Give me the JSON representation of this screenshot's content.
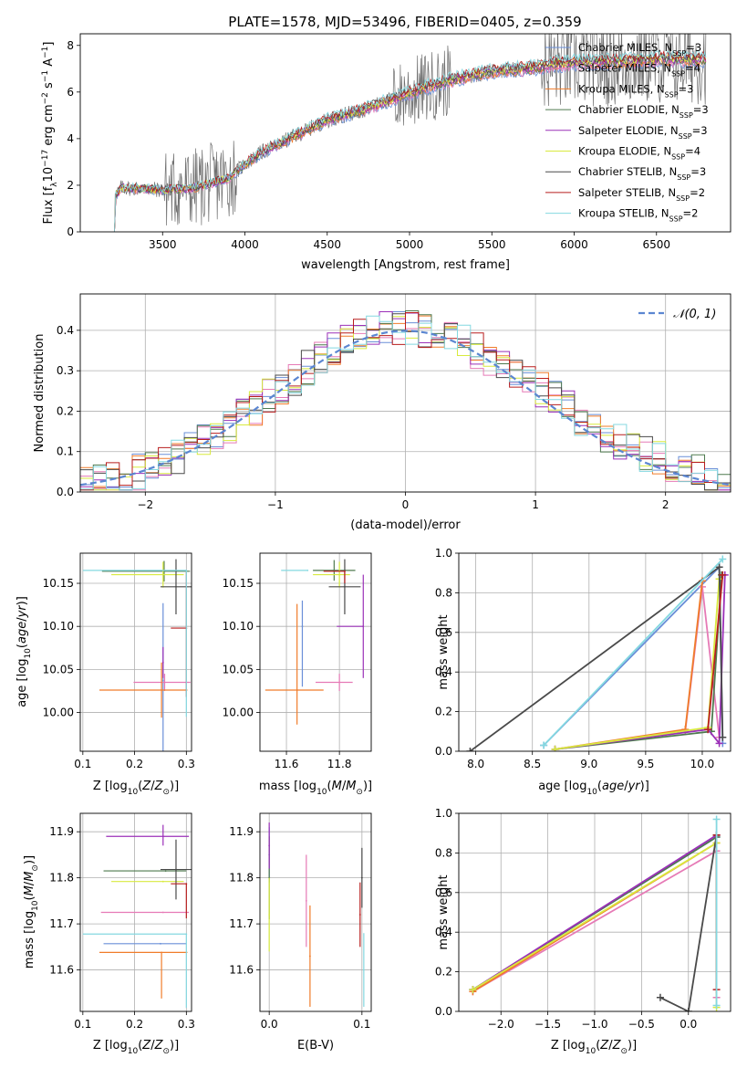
{
  "figure_title": "PLATE=1578, MJD=53496, FIBERID=0405, z=0.359",
  "colors": {
    "Chabrier MILES": "#6a8fd8",
    "Salpeter MILES": "#e67ab6",
    "Kroupa MILES": "#f07c2a",
    "Chabrier ELODIE": "#4f7a4f",
    "Salpeter ELODIE": "#9b30b8",
    "Kroupa ELODIE": "#d8ea3e",
    "Chabrier STELIB": "#4a4a4a",
    "Salpeter STELIB": "#b81e1e",
    "Kroupa STELIB": "#84d8e0",
    "gaussian": "#5b86d1",
    "data": "#6f6f6f"
  },
  "chart_data": [
    {
      "id": "spectrum",
      "type": "line",
      "title": "PLATE=1578, MJD=53496, FIBERID=0405, z=0.359",
      "xlabel": "wavelength [Angstrom, rest frame]",
      "ylabel": "Flux [f_λ 10^-17 erg cm^-2 s^-1 A^-1]",
      "xlim": [
        3000,
        6950
      ],
      "ylim": [
        0,
        8.5
      ],
      "xticks": [
        3500,
        4000,
        4500,
        5000,
        5500,
        6000,
        6500
      ],
      "yticks": [
        0,
        2,
        4,
        6,
        8
      ],
      "grid": false,
      "legend_position": "top-right",
      "continuum_knots": [
        [
          3200,
          1.4
        ],
        [
          3250,
          1.9
        ],
        [
          3500,
          1.8
        ],
        [
          3700,
          1.9
        ],
        [
          3900,
          2.3
        ],
        [
          4000,
          2.9
        ],
        [
          4100,
          3.4
        ],
        [
          4300,
          4.1
        ],
        [
          4500,
          4.8
        ],
        [
          4700,
          5.2
        ],
        [
          4900,
          5.7
        ],
        [
          5100,
          6.2
        ],
        [
          5300,
          6.6
        ],
        [
          5500,
          6.9
        ],
        [
          5700,
          7.0
        ],
        [
          5900,
          7.2
        ],
        [
          6100,
          7.3
        ],
        [
          6300,
          7.3
        ],
        [
          6500,
          7.4
        ],
        [
          6800,
          7.4
        ]
      ],
      "series": [
        {
          "name": "Chabrier MILES",
          "nssp": "3"
        },
        {
          "name": "Salpeter MILES",
          "nssp": "4"
        },
        {
          "name": "Kroupa MILES",
          "nssp": "3"
        },
        {
          "name": "Chabrier ELODIE",
          "nssp": "3"
        },
        {
          "name": "Salpeter ELODIE",
          "nssp": "3"
        },
        {
          "name": "Kroupa ELODIE",
          "nssp": "4"
        },
        {
          "name": "Chabrier STELIB",
          "nssp": "3"
        },
        {
          "name": "Salpeter STELIB",
          "nssp": "2"
        },
        {
          "name": "Kroupa STELIB",
          "nssp": "2"
        }
      ]
    },
    {
      "id": "residuals",
      "type": "line",
      "xlabel": "(data-model)/error",
      "ylabel": "Normed distribution",
      "xlim": [
        -2.5,
        2.5
      ],
      "ylim": [
        0,
        0.49
      ],
      "xticks": [
        -2,
        -1,
        0,
        1,
        2
      ],
      "yticks": [
        0.0,
        0.1,
        0.2,
        0.3,
        0.4
      ],
      "grid": true,
      "legend_position": "top-right",
      "legend_entry": "𝒩(0, 1)",
      "bin_edges": [
        -2.5,
        -2.4,
        -2.3,
        -2.2,
        -2.1,
        -2.0,
        -1.9,
        -1.8,
        -1.7,
        -1.6,
        -1.5,
        -1.4,
        -1.3,
        -1.2,
        -1.1,
        -1.0,
        -0.9,
        -0.8,
        -0.7,
        -0.6,
        -0.5,
        -0.4,
        -0.3,
        -0.2,
        -0.1,
        0.0,
        0.1,
        0.2,
        0.3,
        0.4,
        0.5,
        0.6,
        0.7,
        0.8,
        0.9,
        1.0,
        1.1,
        1.2,
        1.3,
        1.4,
        1.5,
        1.6,
        1.7,
        1.8,
        1.9,
        2.0,
        2.1,
        2.2,
        2.3,
        2.4,
        2.5
      ]
    },
    {
      "id": "age-vs-z",
      "type": "scatter",
      "xlabel": "Z [log10(Z/Z⊙)]",
      "ylabel": "age  [log10(age/yr)]",
      "xlim": [
        0.095,
        0.31
      ],
      "ylim": [
        9.955,
        10.185
      ],
      "xticks": [
        0.1,
        0.2,
        0.3
      ],
      "yticks": [
        10.0,
        10.05,
        10.1,
        10.15
      ],
      "grid": true,
      "errorbars": [
        {
          "series": "Chabrier MILES",
          "x": 0.255,
          "y": 10.037,
          "xerr": [
            0.0,
            0.0
          ],
          "yerr": [
            0.09,
            0.09
          ]
        },
        {
          "series": "Salpeter MILES",
          "x": 0.258,
          "y": 10.035,
          "xerr": [
            0.06,
            0.05
          ],
          "yerr": [
            0.01,
            0.01
          ]
        },
        {
          "series": "Kroupa MILES",
          "x": 0.252,
          "y": 10.026,
          "xerr": [
            0.12,
            0.05
          ],
          "yerr": [
            0.032,
            0.032
          ]
        },
        {
          "series": "Chabrier ELODIE",
          "x": 0.257,
          "y": 10.164,
          "xerr": [
            0.12,
            0.05
          ],
          "yerr": [
            0.012,
            0.012
          ]
        },
        {
          "series": "Salpeter ELODIE",
          "x": 0.255,
          "y": 10.058,
          "xerr": [
            0.0,
            0.0
          ],
          "yerr": [
            0.018,
            0.018
          ]
        },
        {
          "series": "Kroupa ELODIE",
          "x": 0.255,
          "y": 10.16,
          "xerr": [
            0.1,
            0.04
          ],
          "yerr": [
            0.015,
            0.015
          ]
        },
        {
          "series": "Chabrier STELIB",
          "x": 0.28,
          "y": 10.146,
          "xerr": [
            0.03,
            0.03
          ],
          "yerr": [
            0.032,
            0.032
          ]
        },
        {
          "series": "Salpeter STELIB",
          "x": 0.3,
          "y": 10.098,
          "xerr": [
            0.03,
            0.0
          ],
          "yerr": [
            0.08,
            0.065
          ]
        },
        {
          "series": "Kroupa STELIB",
          "x": 0.3,
          "y": 10.165,
          "xerr": [
            0.2,
            0.0
          ],
          "yerr": [
            0.17,
            0.0
          ]
        }
      ]
    },
    {
      "id": "age-vs-mass",
      "type": "scatter",
      "xlabel": "mass [log10(M/M⊙)]",
      "ylabel": "",
      "xlim": [
        11.5,
        11.92
      ],
      "ylim": [
        9.955,
        10.185
      ],
      "xticks": [
        11.6,
        11.8
      ],
      "yticks": [
        10.0,
        10.05,
        10.1,
        10.15
      ],
      "grid": true,
      "errorbars": [
        {
          "series": "Chabrier MILES",
          "x": 11.66,
          "y": 10.1,
          "xerr": [
            0.0,
            0.0
          ],
          "yerr": [
            0.07,
            0.03
          ]
        },
        {
          "series": "Salpeter MILES",
          "x": 11.8,
          "y": 10.035,
          "xerr": [
            0.09,
            0.05
          ],
          "yerr": [
            0.01,
            0.01
          ]
        },
        {
          "series": "Kroupa MILES",
          "x": 11.64,
          "y": 10.026,
          "xerr": [
            0.12,
            0.1
          ],
          "yerr": [
            0.04,
            0.1
          ]
        },
        {
          "series": "Chabrier ELODIE",
          "x": 11.78,
          "y": 10.165,
          "xerr": [
            0.08,
            0.08
          ],
          "yerr": [
            0.012,
            0.012
          ]
        },
        {
          "series": "Salpeter ELODIE",
          "x": 11.89,
          "y": 10.1,
          "xerr": [
            0.1,
            0.0
          ],
          "yerr": [
            0.06,
            0.06
          ]
        },
        {
          "series": "Kroupa ELODIE",
          "x": 11.8,
          "y": 10.16,
          "xerr": [
            0.1,
            0.04
          ],
          "yerr": [
            0.015,
            0.015
          ]
        },
        {
          "series": "Chabrier STELIB",
          "x": 11.82,
          "y": 10.146,
          "xerr": [
            0.06,
            0.06
          ],
          "yerr": [
            0.032,
            0.032
          ]
        },
        {
          "series": "Salpeter STELIB",
          "x": 11.82,
          "y": 10.164,
          "xerr": [
            0.08,
            0.0
          ],
          "yerr": [
            0.014,
            0.0
          ]
        },
        {
          "series": "Kroupa STELIB",
          "x": 11.68,
          "y": 10.165,
          "xerr": [
            0.1,
            0.0
          ],
          "yerr": [
            0.0,
            0.0
          ]
        }
      ]
    },
    {
      "id": "weight-vs-age",
      "type": "line",
      "xlabel": "age  [log10(age/yr)]",
      "ylabel": "mass weight",
      "xlim": [
        7.85,
        10.25
      ],
      "ylim": [
        0,
        1.0
      ],
      "xticks": [
        8.0,
        8.5,
        9.0,
        9.5,
        10.0
      ],
      "yticks": [
        0.0,
        0.2,
        0.4,
        0.6,
        0.8,
        1.0
      ],
      "grid": true,
      "series": [
        {
          "name": "Chabrier MILES",
          "x": [
            8.6,
            10.15,
            10.18
          ],
          "y": [
            0.03,
            0.93,
            0.04
          ]
        },
        {
          "name": "Salpeter MILES",
          "x": [
            9.85,
            10.0,
            10.15
          ],
          "y": [
            0.1,
            0.83,
            0.07
          ]
        },
        {
          "name": "Kroupa MILES",
          "x": [
            8.7,
            9.85,
            10.0
          ],
          "y": [
            0.01,
            0.11,
            0.86
          ]
        },
        {
          "name": "Chabrier ELODIE",
          "x": [
            8.7,
            10.08,
            10.17
          ],
          "y": [
            0.01,
            0.1,
            0.89
          ]
        },
        {
          "name": "Salpeter ELODIE",
          "x": [
            8.7,
            10.05,
            10.15,
            10.2
          ],
          "y": [
            0.01,
            0.11,
            0.04,
            0.89
          ]
        },
        {
          "name": "Kroupa ELODIE",
          "x": [
            8.7,
            10.05,
            10.15
          ],
          "y": [
            0.01,
            0.12,
            0.87
          ]
        },
        {
          "name": "Chabrier STELIB",
          "x": [
            7.95,
            10.15,
            10.18
          ],
          "y": [
            0.0,
            0.93,
            0.07
          ]
        },
        {
          "name": "Salpeter STELIB",
          "x": [
            10.05,
            10.18
          ],
          "y": [
            0.11,
            0.89
          ]
        },
        {
          "name": "Kroupa STELIB",
          "x": [
            8.6,
            10.18
          ],
          "y": [
            0.03,
            0.97
          ]
        }
      ]
    },
    {
      "id": "mass-vs-z",
      "type": "scatter",
      "xlabel": "Z [log10(Z/Z⊙)]",
      "ylabel": "mass [log10(M/M⊙)]",
      "xlim": [
        0.095,
        0.31
      ],
      "ylim": [
        11.51,
        11.94
      ],
      "xticks": [
        0.1,
        0.2,
        0.3
      ],
      "yticks": [
        11.6,
        11.7,
        11.8,
        11.9
      ],
      "grid": true,
      "errorbars": [
        {
          "series": "Chabrier MILES",
          "x": 0.25,
          "y": 11.657,
          "xerr": [
            0.11,
            0.05
          ],
          "yerr": [
            0.0,
            0.0
          ]
        },
        {
          "series": "Salpeter MILES",
          "x": 0.255,
          "y": 11.725,
          "xerr": [
            0.12,
            0.05
          ],
          "yerr": [
            0.0,
            0.0
          ]
        },
        {
          "series": "Kroupa MILES",
          "x": 0.252,
          "y": 11.638,
          "xerr": [
            0.12,
            0.05
          ],
          "yerr": [
            0.1,
            0.0
          ]
        },
        {
          "series": "Chabrier ELODIE",
          "x": 0.26,
          "y": 11.815,
          "xerr": [
            0.12,
            0.04
          ],
          "yerr": [
            0.0,
            0.0
          ]
        },
        {
          "series": "Salpeter ELODIE",
          "x": 0.255,
          "y": 11.89,
          "xerr": [
            0.11,
            0.05
          ],
          "yerr": [
            0.02,
            0.025
          ]
        },
        {
          "series": "Kroupa ELODIE",
          "x": 0.255,
          "y": 11.792,
          "xerr": [
            0.1,
            0.04
          ],
          "yerr": [
            0.0,
            0.0
          ]
        },
        {
          "series": "Chabrier STELIB",
          "x": 0.28,
          "y": 11.818,
          "xerr": [
            0.03,
            0.03
          ],
          "yerr": [
            0.065,
            0.065
          ]
        },
        {
          "series": "Salpeter STELIB",
          "x": 0.3,
          "y": 11.787,
          "xerr": [
            0.03,
            0.0
          ],
          "yerr": [
            0.075,
            0.0
          ]
        },
        {
          "series": "Kroupa STELIB",
          "x": 0.3,
          "y": 11.678,
          "xerr": [
            0.2,
            0.0
          ],
          "yerr": [
            0.16,
            0.0
          ]
        }
      ]
    },
    {
      "id": "mass-vs-ebv",
      "type": "scatter",
      "xlabel": "E(B-V)",
      "ylabel": "",
      "xlim": [
        -0.01,
        0.11
      ],
      "ylim": [
        11.51,
        11.94
      ],
      "xticks": [
        0.0,
        0.1
      ],
      "yticks": [
        11.6,
        11.7,
        11.8,
        11.9
      ],
      "grid": true,
      "errorbars": [
        {
          "series": "Chabrier MILES",
          "x": 0.0,
          "y": 11.85,
          "xerr": [
            0.0,
            0.0
          ],
          "yerr": [
            0.06,
            0.06
          ]
        },
        {
          "series": "Salpeter MILES",
          "x": 0.04,
          "y": 11.75,
          "xerr": [
            0.0,
            0.0
          ],
          "yerr": [
            0.1,
            0.1
          ]
        },
        {
          "series": "Kroupa MILES",
          "x": 0.044,
          "y": 11.63,
          "xerr": [
            0.0,
            0.0
          ],
          "yerr": [
            0.11,
            0.11
          ]
        },
        {
          "series": "Chabrier ELODIE",
          "x": 0.0,
          "y": 11.8,
          "xerr": [
            0.0,
            0.0
          ],
          "yerr": [
            0.09,
            0.09
          ]
        },
        {
          "series": "Salpeter ELODIE",
          "x": 0.0,
          "y": 11.87,
          "xerr": [
            0.0,
            0.0
          ],
          "yerr": [
            0.05,
            0.05
          ]
        },
        {
          "series": "Kroupa ELODIE",
          "x": 0.0,
          "y": 11.72,
          "xerr": [
            0.0,
            0.0
          ],
          "yerr": [
            0.08,
            0.08
          ]
        },
        {
          "series": "Chabrier STELIB",
          "x": 0.1,
          "y": 11.8,
          "xerr": [
            0.0,
            0.0
          ],
          "yerr": [
            0.065,
            0.065
          ]
        },
        {
          "series": "Salpeter STELIB",
          "x": 0.098,
          "y": 11.72,
          "xerr": [
            0.0,
            0.0
          ],
          "yerr": [
            0.07,
            0.07
          ]
        },
        {
          "series": "Kroupa STELIB",
          "x": 0.102,
          "y": 11.6,
          "xerr": [
            0.0,
            0.0
          ],
          "yerr": [
            0.08,
            0.08
          ]
        }
      ]
    },
    {
      "id": "weight-vs-z",
      "type": "line",
      "xlabel": "Z [log10(Z/Z⊙)]",
      "ylabel": "mass weight",
      "xlim": [
        -2.45,
        0.45
      ],
      "ylim": [
        0,
        1.0
      ],
      "xticks": [
        -2.0,
        -1.5,
        -1.0,
        -0.5,
        0.0
      ],
      "yticks": [
        0.0,
        0.2,
        0.4,
        0.6,
        0.8,
        1.0
      ],
      "grid": true,
      "series": [
        {
          "name": "Chabrier MILES",
          "x": [
            -2.3,
            0.3
          ],
          "y": [
            0.11,
            0.88
          ]
        },
        {
          "name": "Salpeter MILES",
          "x": [
            -2.3,
            0.3,
            0.3
          ],
          "y": [
            0.1,
            0.81,
            0.07
          ]
        },
        {
          "name": "Kroupa MILES",
          "x": [
            -2.3,
            0.3
          ],
          "y": [
            0.1,
            0.85
          ]
        },
        {
          "name": "Chabrier ELODIE",
          "x": [
            -2.3,
            0.3
          ],
          "y": [
            0.11,
            0.88
          ]
        },
        {
          "name": "Salpeter ELODIE",
          "x": [
            -2.3,
            0.3
          ],
          "y": [
            0.11,
            0.89
          ]
        },
        {
          "name": "Kroupa ELODIE",
          "x": [
            -2.3,
            0.3,
            0.3
          ],
          "y": [
            0.11,
            0.85,
            0.02
          ]
        },
        {
          "name": "Chabrier STELIB",
          "x": [
            -0.3,
            0.0,
            0.3
          ],
          "y": [
            0.07,
            0.0,
            0.89
          ]
        },
        {
          "name": "Salpeter STELIB",
          "x": [
            0.3,
            0.3
          ],
          "y": [
            0.11,
            0.89
          ]
        },
        {
          "name": "Kroupa STELIB",
          "x": [
            0.3,
            0.3
          ],
          "y": [
            0.03,
            0.97
          ]
        }
      ]
    }
  ]
}
